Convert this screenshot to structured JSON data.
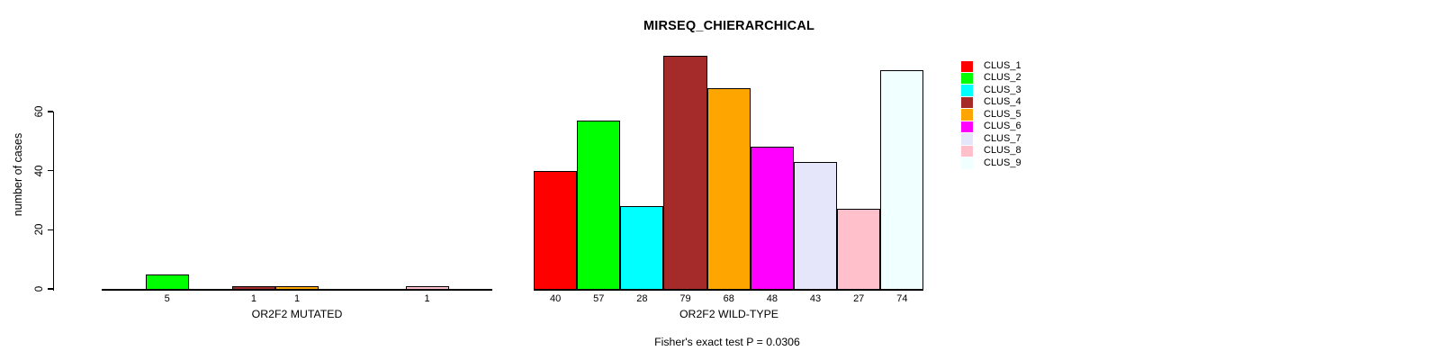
{
  "chart_data": {
    "type": "bar",
    "title": "MIRSEQ_CHIERARCHICAL",
    "ylabel": "number of cases",
    "yticks": [
      0,
      20,
      40,
      60
    ],
    "ylim": [
      0,
      85
    ],
    "grid": false,
    "legend_position": "right-top",
    "categories": [
      "CLUS_1",
      "CLUS_2",
      "CLUS_3",
      "CLUS_4",
      "CLUS_5",
      "CLUS_6",
      "CLUS_7",
      "CLUS_8",
      "CLUS_9"
    ],
    "colors": [
      "#FF0000",
      "#00FF00",
      "#00FFFF",
      "#A52A2A",
      "#FFA500",
      "#FF00FF",
      "#E6E6FA",
      "#FFC0CB",
      "#F0FFFF"
    ],
    "panels": [
      {
        "xlabel": "OR2F2 MUTATED",
        "values": [
          0,
          5,
          0,
          1,
          1,
          0,
          0,
          1,
          0
        ],
        "bar_labels": [
          "",
          "5",
          "",
          "1",
          "1",
          "",
          "",
          "1",
          ""
        ]
      },
      {
        "xlabel": "OR2F2 WILD-TYPE",
        "values": [
          40,
          57,
          28,
          79,
          68,
          48,
          43,
          27,
          74
        ],
        "bar_labels": [
          "40",
          "57",
          "28",
          "79",
          "68",
          "48",
          "43",
          "27",
          "74"
        ]
      }
    ],
    "footnote": "Fisher's exact test P = 0.0306",
    "axis_color": "#000000",
    "background": "#FFFFFF"
  }
}
